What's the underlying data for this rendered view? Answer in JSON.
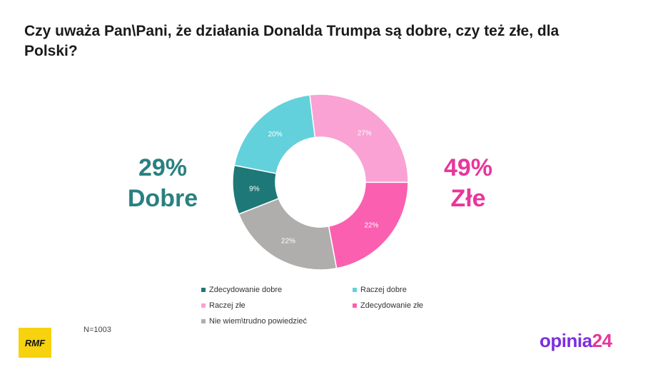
{
  "title_lines": [
    "Czy uważa Pan\\Pani, że działania Donalda Trumpa są dobre, czy też złe, dla",
    "Polski?"
  ],
  "summary_left": {
    "percent": "29%",
    "label": "Dobre",
    "color": "#2a8080"
  },
  "summary_right": {
    "percent": "49%",
    "label": "Złe",
    "color": "#e8369c"
  },
  "sample": "N=1003",
  "logos": {
    "rmf": "RMF",
    "opinia_part1": "opinia",
    "opinia_part2": "24"
  },
  "chart_data": {
    "type": "pie",
    "variant": "donut",
    "start_angle_deg": -7,
    "direction": "clockwise",
    "categories": [
      "Raczej złe",
      "Zdecydowanie złe",
      "Nie wiem\\trudno powiedzieć",
      "Zdecydowanie dobre",
      "Raczej dobre"
    ],
    "values": [
      27,
      22,
      22,
      9,
      20
    ],
    "value_labels": [
      "27%",
      "22%",
      "22%",
      "9%",
      "20%"
    ],
    "colors": [
      "#f9a2d3",
      "#fb5fb0",
      "#b0adad",
      "#1f7878",
      "#63d1db"
    ],
    "legend": {
      "placement": "bottom",
      "entries": [
        {
          "label": "Zdecydowanie dobre",
          "color": "#1f7878"
        },
        {
          "label": "Raczej dobre",
          "color": "#63d1db"
        },
        {
          "label": "Raczej złe",
          "color": "#f9a2d3"
        },
        {
          "label": "Zdecydowanie złe",
          "color": "#fb5fb0"
        },
        {
          "label": "Nie wiem\\trudno powiedzieć",
          "color": "#b0adad"
        }
      ]
    }
  }
}
